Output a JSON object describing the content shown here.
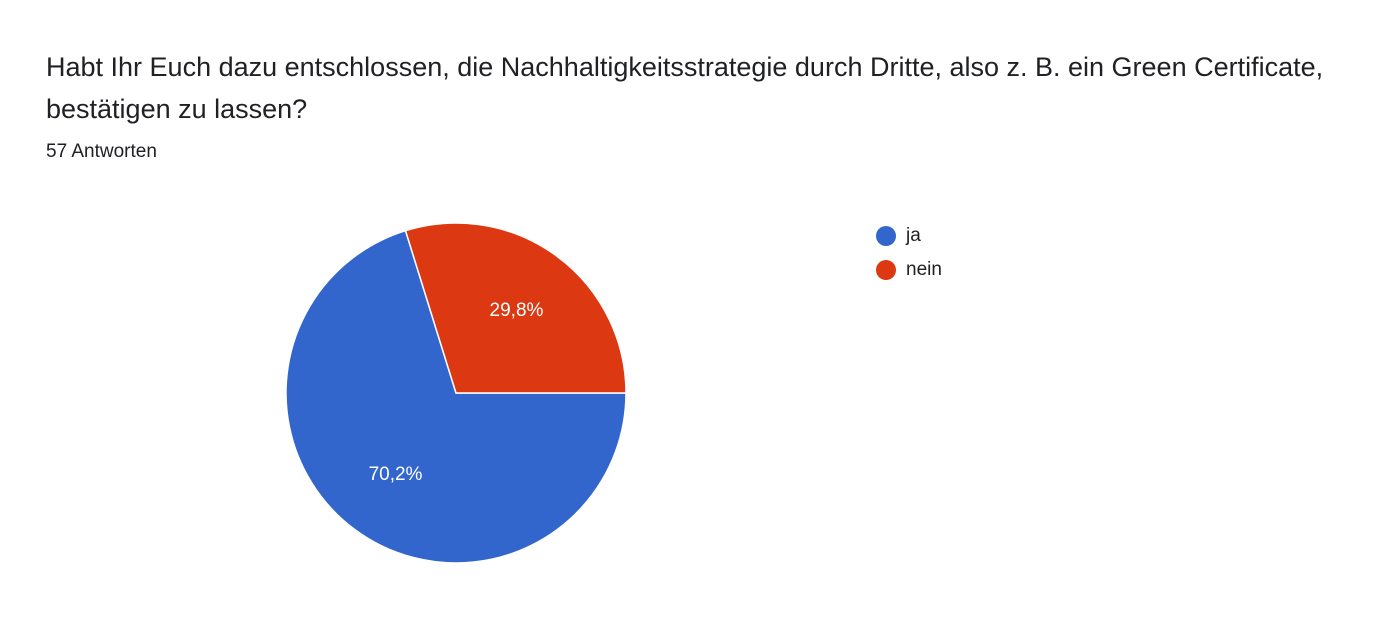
{
  "question": "Habt Ihr Euch dazu entschlossen, die Nachhaltigkeitsstrategie durch Dritte, also z. B. ein Green Certificate, bestätigen zu lassen?",
  "response_count": "57 Antworten",
  "chart_data": {
    "type": "pie",
    "title": "Habt Ihr Euch dazu entschlossen, die Nachhaltigkeitsstrategie durch Dritte, also z. B. ein Green Certificate, bestätigen zu lassen?",
    "legend_position": "right",
    "slices": [
      {
        "label": "ja",
        "percent": 70.2,
        "display": "70,2%",
        "color": "#3366cc"
      },
      {
        "label": "nein",
        "percent": 29.8,
        "display": "29,8%",
        "color": "#dc3912"
      }
    ]
  }
}
